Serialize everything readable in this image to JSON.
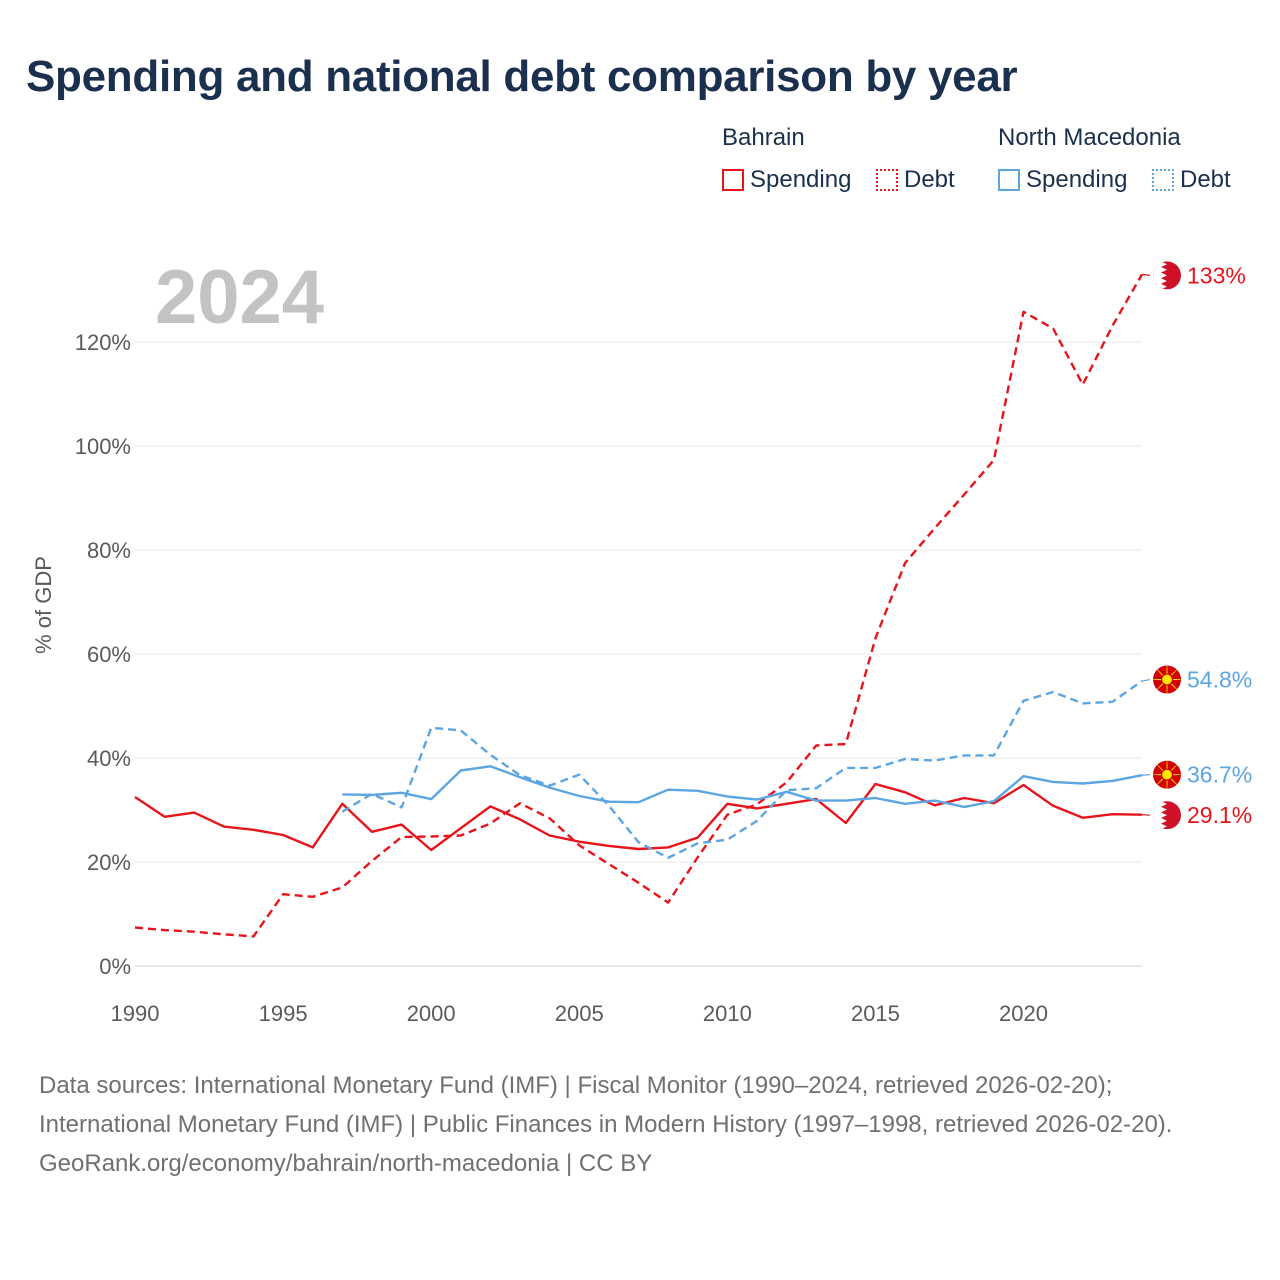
{
  "title": "Spending and national debt comparison by year",
  "legend": {
    "groups": [
      {
        "name": "Bahrain",
        "color": "#e8141b",
        "spending_label": "Spending",
        "debt_label": "Debt"
      },
      {
        "name": "North Macedonia",
        "color": "#5ca5e3",
        "spending_label": "Spending",
        "debt_label": "Debt"
      }
    ]
  },
  "chart_data": {
    "type": "line",
    "title": "Spending and national debt comparison by year",
    "ylabel": "% of GDP",
    "xlabel": "",
    "year_watermark": "2024",
    "xlim": [
      1990,
      2024
    ],
    "ylim": [
      0,
      135
    ],
    "x_ticks": [
      1990,
      1995,
      2000,
      2005,
      2010,
      2015,
      2020
    ],
    "y_ticks": [
      0,
      20,
      40,
      60,
      80,
      100,
      120
    ],
    "y_tick_labels": [
      "0%",
      "20%",
      "40%",
      "60%",
      "80%",
      "100%",
      "120%"
    ],
    "grid": true,
    "series": [
      {
        "name": "Bahrain Spending",
        "country": "Bahrain",
        "measure": "Spending",
        "color": "#e8141b",
        "dash": false,
        "end_label": "29.1%",
        "flag": "bahrain",
        "x": [
          1990,
          1991,
          1992,
          1993,
          1994,
          1995,
          1996,
          1997,
          1998,
          1999,
          2000,
          2001,
          2002,
          2003,
          2004,
          2005,
          2006,
          2007,
          2008,
          2009,
          2010,
          2011,
          2012,
          2013,
          2014,
          2015,
          2016,
          2017,
          2018,
          2019,
          2020,
          2021,
          2022,
          2023,
          2024
        ],
        "values": [
          32.5,
          28.7,
          29.5,
          26.8,
          26.2,
          25.2,
          22.8,
          31.2,
          25.8,
          27.2,
          22.3,
          26.5,
          30.7,
          28.2,
          25.1,
          23.9,
          23.1,
          22.5,
          22.8,
          24.7,
          31.2,
          30.3,
          31.2,
          32.1,
          27.5,
          35.0,
          33.4,
          30.9,
          32.3,
          31.3,
          34.8,
          30.8,
          28.5,
          29.2,
          29.1
        ]
      },
      {
        "name": "Bahrain Debt",
        "country": "Bahrain",
        "measure": "Debt",
        "color": "#e8141b",
        "dash": true,
        "end_label": "133%",
        "flag": "bahrain",
        "x": [
          1990,
          1991,
          1992,
          1993,
          1994,
          1995,
          1996,
          1997,
          1998,
          1999,
          2000,
          2001,
          2002,
          2003,
          2004,
          2005,
          2006,
          2007,
          2008,
          2009,
          2010,
          2011,
          2012,
          2013,
          2014,
          2015,
          2016,
          2017,
          2018,
          2019,
          2020,
          2021,
          2022,
          2023,
          2024
        ],
        "values": [
          7.4,
          6.9,
          6.6,
          6.1,
          5.7,
          13.8,
          13.3,
          15.1,
          20.2,
          24.8,
          24.9,
          25.1,
          27.4,
          31.3,
          28.4,
          23.2,
          19.6,
          16.0,
          12.2,
          20.9,
          29.1,
          31.1,
          35.3,
          42.4,
          42.7,
          63.0,
          77.5,
          84.2,
          90.7,
          97.3,
          125.8,
          122.6,
          111.8,
          123.1,
          133.0
        ]
      },
      {
        "name": "North Macedonia Spending",
        "country": "North Macedonia",
        "measure": "Spending",
        "color": "#5ca5e3",
        "dash": false,
        "end_label": "36.7%",
        "flag": "north-macedonia",
        "x": [
          1997,
          1998,
          1999,
          2000,
          2001,
          2002,
          2003,
          2004,
          2005,
          2006,
          2007,
          2008,
          2009,
          2010,
          2011,
          2012,
          2013,
          2014,
          2015,
          2016,
          2017,
          2018,
          2019,
          2020,
          2021,
          2022,
          2023,
          2024
        ],
        "values": [
          33.0,
          32.9,
          33.3,
          32.1,
          37.6,
          38.4,
          36.3,
          34.3,
          32.7,
          31.6,
          31.5,
          33.9,
          33.7,
          32.6,
          32.0,
          33.5,
          31.8,
          31.8,
          32.3,
          31.2,
          31.8,
          30.6,
          31.7,
          36.5,
          35.4,
          35.1,
          35.6,
          36.7
        ]
      },
      {
        "name": "North Macedonia Debt",
        "country": "North Macedonia",
        "measure": "Debt",
        "color": "#5ca5e3",
        "dash": true,
        "end_label": "54.8%",
        "flag": "north-macedonia",
        "x": [
          1997,
          1998,
          1999,
          2000,
          2001,
          2002,
          2003,
          2004,
          2005,
          2006,
          2007,
          2008,
          2009,
          2010,
          2011,
          2012,
          2013,
          2014,
          2015,
          2016,
          2017,
          2018,
          2019,
          2020,
          2021,
          2022,
          2023,
          2024
        ],
        "values": [
          29.7,
          33.1,
          30.5,
          45.8,
          45.3,
          40.6,
          36.7,
          34.7,
          36.8,
          30.8,
          23.8,
          20.8,
          23.6,
          24.3,
          27.9,
          33.8,
          34.2,
          38.1,
          38.1,
          39.8,
          39.5,
          40.5,
          40.5,
          51.0,
          52.7,
          50.5,
          50.8,
          54.8
        ]
      }
    ]
  },
  "footer": {
    "sources": "Data sources: International Monetary Fund (IMF) | Fiscal Monitor (1990–2024, retrieved 2026-02-20); International Monetary Fund (IMF) | Public Finances in Modern History (1997–1998, retrieved 2026-02-20).",
    "credit": "GeoRank.org/economy/bahrain/north-macedonia | CC BY"
  }
}
